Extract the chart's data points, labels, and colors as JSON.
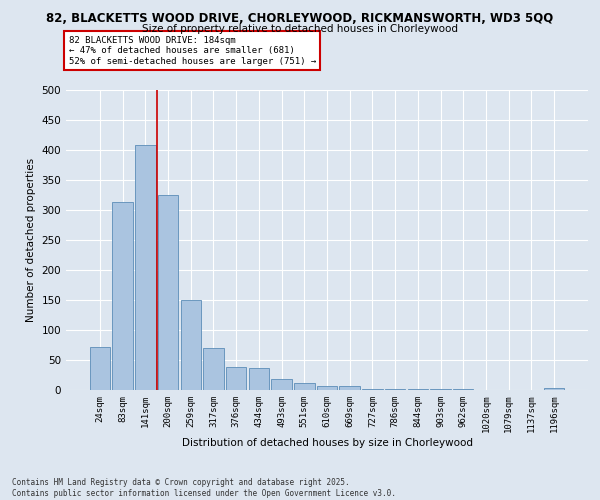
{
  "title1": "82, BLACKETTS WOOD DRIVE, CHORLEYWOOD, RICKMANSWORTH, WD3 5QQ",
  "title2": "Size of property relative to detached houses in Chorleywood",
  "xlabel": "Distribution of detached houses by size in Chorleywood",
  "ylabel": "Number of detached properties",
  "categories": [
    "24sqm",
    "83sqm",
    "141sqm",
    "200sqm",
    "259sqm",
    "317sqm",
    "376sqm",
    "434sqm",
    "493sqm",
    "551sqm",
    "610sqm",
    "669sqm",
    "727sqm",
    "786sqm",
    "844sqm",
    "903sqm",
    "962sqm",
    "1020sqm",
    "1079sqm",
    "1137sqm",
    "1196sqm"
  ],
  "values": [
    72,
    313,
    409,
    325,
    150,
    70,
    38,
    36,
    18,
    11,
    6,
    6,
    2,
    2,
    2,
    1,
    1,
    0,
    0,
    0,
    4
  ],
  "bar_color": "#aac4e0",
  "bar_edge_color": "#5b8db8",
  "vline_x": 2.5,
  "vline_color": "#cc0000",
  "annotation_text": "82 BLACKETTS WOOD DRIVE: 184sqm\n← 47% of detached houses are smaller (681)\n52% of semi-detached houses are larger (751) →",
  "annotation_box_color": "#ffffff",
  "annotation_box_edge": "#cc0000",
  "footer_text": "Contains HM Land Registry data © Crown copyright and database right 2025.\nContains public sector information licensed under the Open Government Licence v3.0.",
  "background_color": "#dde6f0",
  "plot_bg_color": "#dde6f0",
  "ylim": [
    0,
    500
  ],
  "yticks": [
    0,
    50,
    100,
    150,
    200,
    250,
    300,
    350,
    400,
    450,
    500
  ],
  "title1_fontsize": 8.5,
  "title2_fontsize": 7.5
}
